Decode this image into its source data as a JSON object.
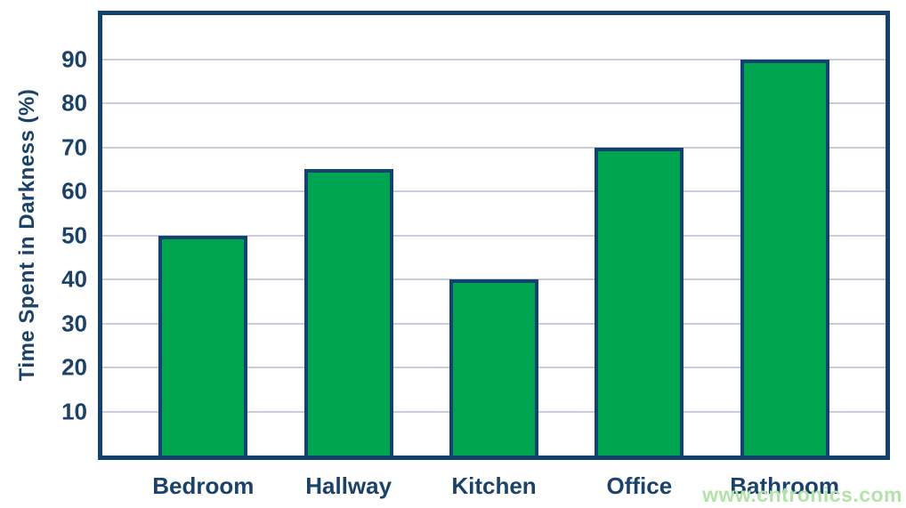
{
  "watermark": "www.cntronics.com",
  "colors": {
    "bar_fill": "#00a551",
    "bar_border": "#14426e",
    "axis_border": "#14426e",
    "label_text": "#1b4269",
    "gridline": "#c9cdd9",
    "watermark_text": "#b3e3aa",
    "background": "#ffffff"
  },
  "chart_data": {
    "type": "bar",
    "title": "",
    "xlabel": "",
    "ylabel": "Time Spent in Darkness (%)",
    "categories": [
      "Bedroom",
      "Hallway",
      "Kitchen",
      "Office",
      "Bathroom"
    ],
    "values": [
      50,
      65,
      40,
      70,
      90
    ],
    "ylim": [
      0,
      100
    ],
    "yticks": [
      10,
      20,
      30,
      40,
      50,
      60,
      70,
      80,
      90
    ],
    "grid": true,
    "legend": "none"
  }
}
